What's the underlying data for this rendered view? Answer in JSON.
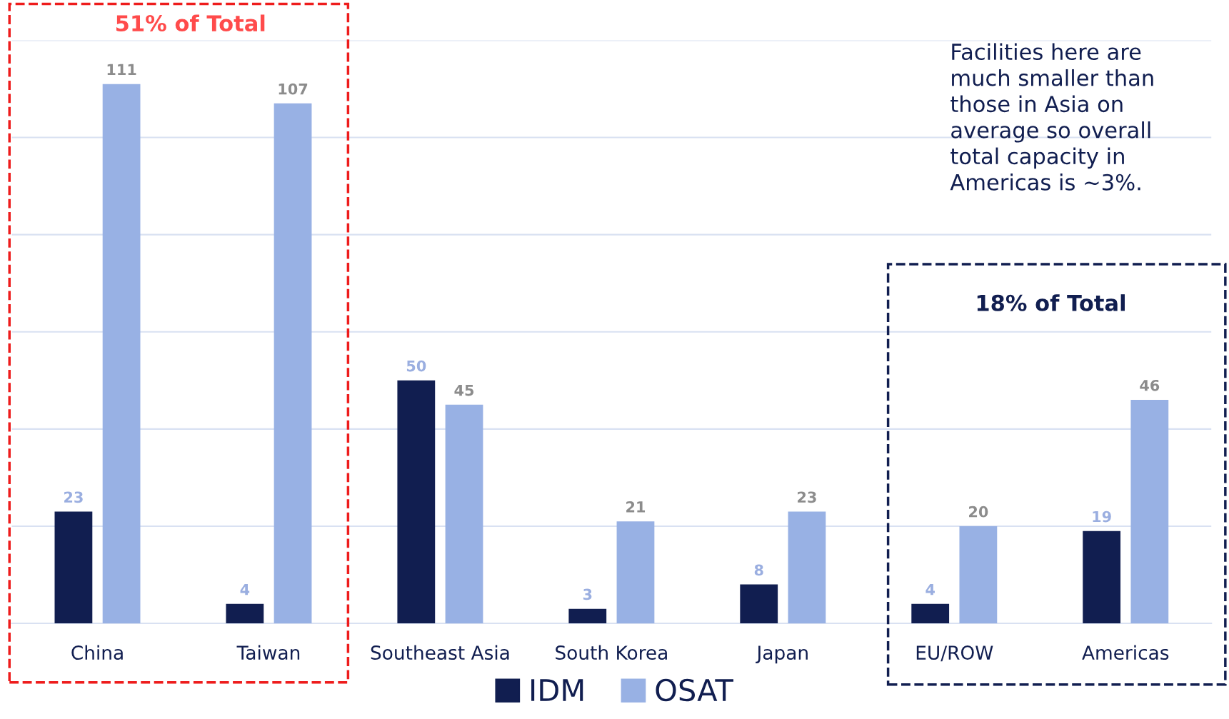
{
  "chart_data": {
    "type": "bar",
    "categories": [
      "China",
      "Taiwan",
      "Southeast Asia",
      "South Korea",
      "Japan",
      "EU/ROW",
      "Americas"
    ],
    "series": [
      {
        "name": "IDM",
        "color": "#111e50",
        "values": [
          23,
          4,
          50,
          3,
          8,
          4,
          19
        ]
      },
      {
        "name": "OSAT",
        "color": "#98b1e4",
        "values": [
          111,
          107,
          45,
          21,
          23,
          20,
          46
        ]
      }
    ],
    "data_labels": true,
    "ylim": [
      0,
      120
    ],
    "yticks": [
      {
        "value": 20,
        "label": null
      },
      {
        "value": 40,
        "label": null
      },
      {
        "value": 60,
        "label": null
      },
      {
        "value": 80,
        "label": null
      },
      {
        "value": 100,
        "label": null
      },
      {
        "value": 120,
        "label": null
      }
    ],
    "grid": "y",
    "legend": "bottom",
    "annotations": [
      "51% of Total",
      "18% of Total",
      "Facilities here are\nmuch smaller than\nthose in Asia on\naverage so overall\ntotal capacity in\nAmericas is ~3%."
    ]
  }
}
